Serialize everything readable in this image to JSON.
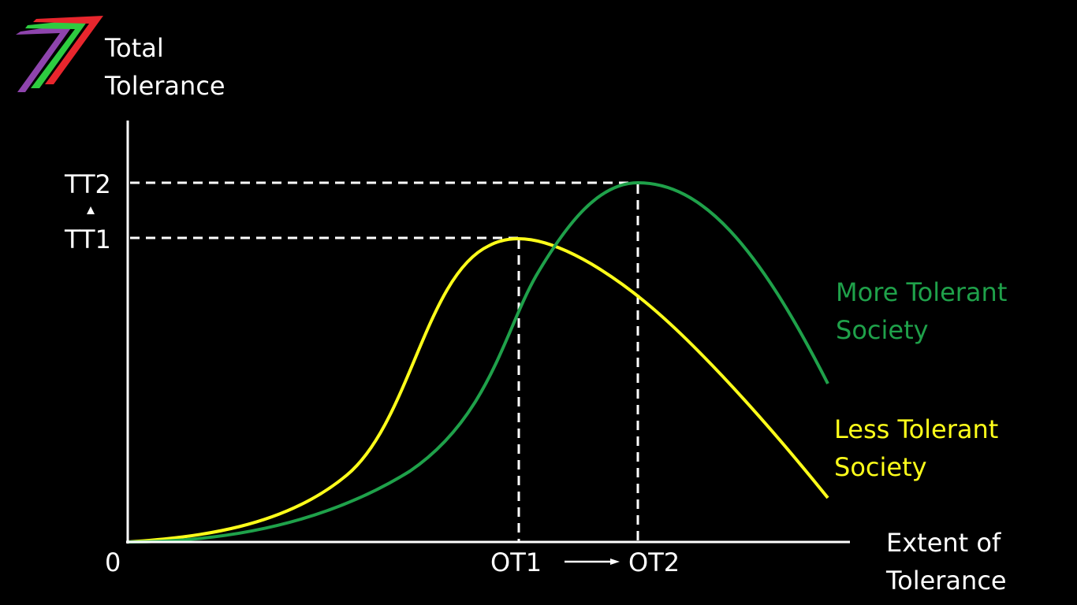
{
  "logo": {
    "name": "seven-stripe-logo",
    "colors": [
      "#8e44ad",
      "#2ecc40",
      "#e8262d"
    ]
  },
  "colors": {
    "background": "#000000",
    "axis": "#ffffff",
    "more_tolerant": "#1fa14a",
    "less_tolerant": "#ffff1a",
    "guide_lines": "#ffffff"
  },
  "labels": {
    "y_axis_line1": "Total",
    "y_axis_line2": "Tolerance",
    "x_axis_line1": "Extent of",
    "x_axis_line2": "Tolerance",
    "origin": "0",
    "tt2": "TT2",
    "tt1": "TT1",
    "ot1": "OT1",
    "ot2": "OT2",
    "more_tolerant_line1": "More Tolerant",
    "more_tolerant_line2": "Society",
    "less_tolerant_line1": "Less Tolerant",
    "less_tolerant_line2": "Society"
  },
  "chart_data": {
    "type": "line",
    "title": "",
    "xlabel": "Extent of Tolerance",
    "ylabel": "Total Tolerance",
    "x_ticks": [
      "OT1",
      "OT2"
    ],
    "y_ticks": [
      "TT1",
      "TT2"
    ],
    "series": [
      {
        "name": "Less Tolerant Society",
        "peak": {
          "x": "OT1",
          "y": "TT1"
        }
      },
      {
        "name": "More Tolerant Society",
        "peak": {
          "x": "OT2",
          "y": "TT2"
        }
      }
    ],
    "annotations": [
      {
        "from": "OT1",
        "to": "OT2",
        "kind": "arrow"
      },
      {
        "from": "TT1",
        "to": "TT2",
        "kind": "arrow"
      }
    ],
    "grid": false
  }
}
